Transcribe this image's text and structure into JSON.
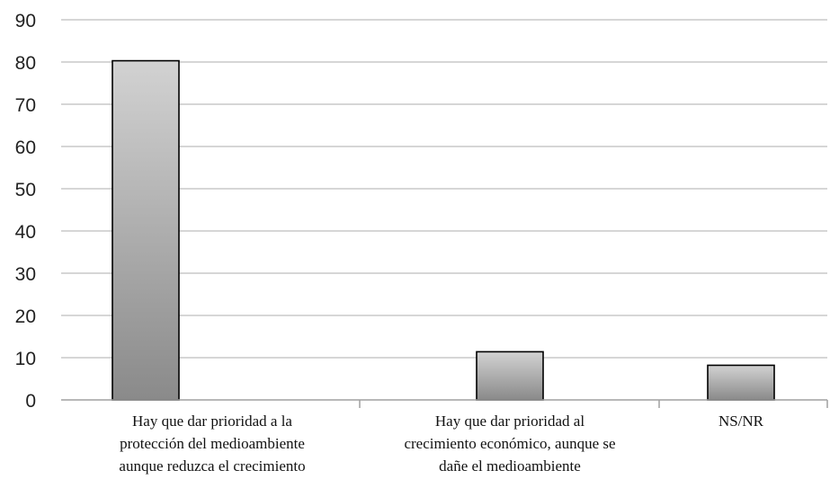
{
  "chart_data": {
    "type": "bar",
    "title": "",
    "xlabel": "",
    "ylabel": "",
    "ylim": [
      0,
      90
    ],
    "yticks": [
      0,
      10,
      20,
      30,
      40,
      50,
      60,
      70,
      80,
      90
    ],
    "grid": true,
    "legend": "none",
    "bar_color": "#b0b0b0",
    "categories": [
      [
        "Hay que dar prioridad a la",
        "protección del medioambiente",
        "aunque reduzca el crecimiento"
      ],
      [
        "Hay que dar prioridad al",
        "crecimiento económico, aunque se",
        "dañe el medioambiente"
      ],
      [
        "NS/NR"
      ]
    ],
    "values": [
      80.3,
      11.4,
      8.2
    ]
  }
}
